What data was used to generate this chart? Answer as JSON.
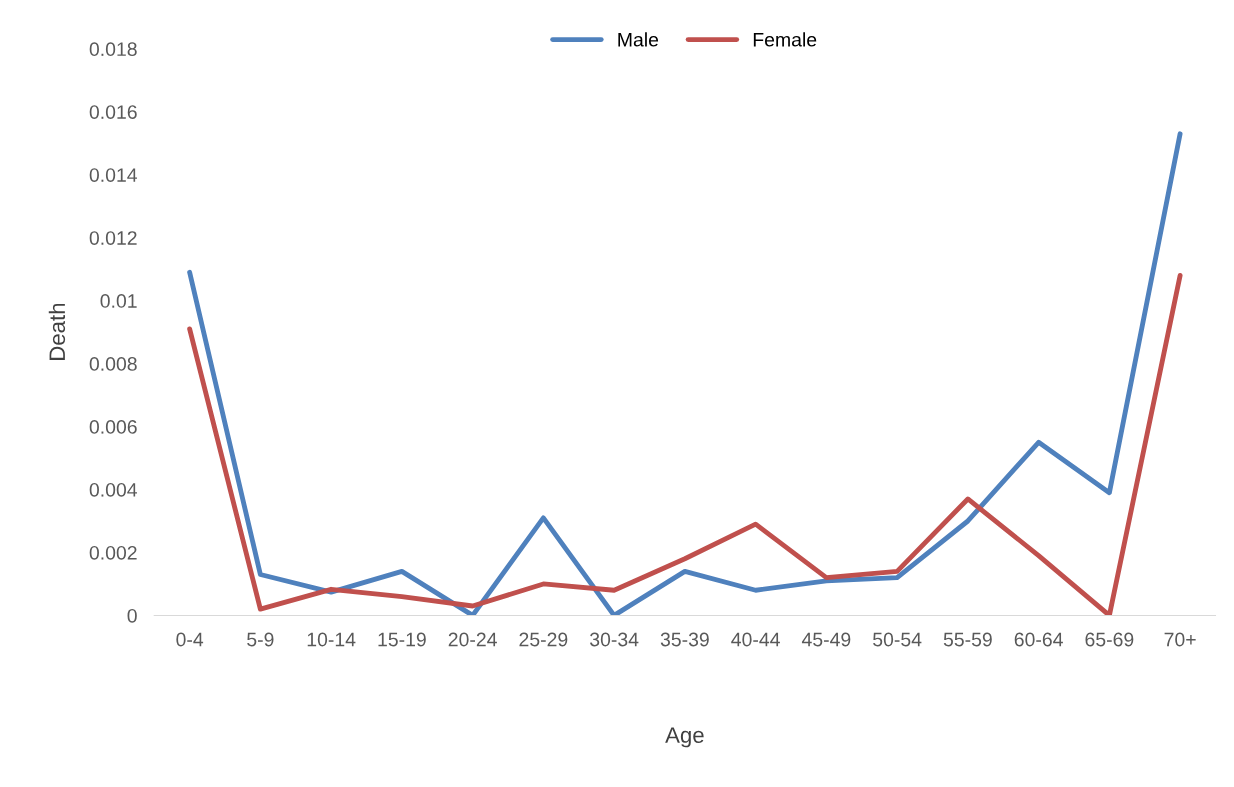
{
  "chart_data": {
    "type": "line",
    "xlabel": "Age",
    "ylabel": "Death",
    "categories": [
      "0-4",
      "5-9",
      "10-14",
      "15-19",
      "20-24",
      "25-29",
      "30-34",
      "35-39",
      "40-44",
      "45-49",
      "50-54",
      "55-59",
      "60-64",
      "65-69",
      "70+"
    ],
    "series": [
      {
        "name": "Male",
        "color": "#4f81bd",
        "values": [
          0.0109,
          0.0013,
          0.00074,
          0.0014,
          0.0,
          0.0031,
          0.0,
          0.0014,
          0.0008,
          0.0011,
          0.0012,
          0.003,
          0.0055,
          0.0039,
          0.0153
        ]
      },
      {
        "name": "Female",
        "color": "#c0504d",
        "values": [
          0.0091,
          0.0002,
          0.00083,
          0.0006,
          0.0003,
          0.001,
          0.0008,
          0.0018,
          0.0029,
          0.0012,
          0.0014,
          0.0037,
          0.0019,
          0.0,
          0.0108
        ]
      }
    ],
    "ylim": [
      0,
      0.018
    ],
    "yticks": [
      {
        "value": 0,
        "label": "0"
      },
      0.002,
      0.004,
      0.006,
      0.008,
      0.01,
      0.012,
      0.014,
      0.016,
      0.018
    ],
    "grid": false,
    "legend": "top",
    "marker": "none",
    "line_style": "solid"
  }
}
